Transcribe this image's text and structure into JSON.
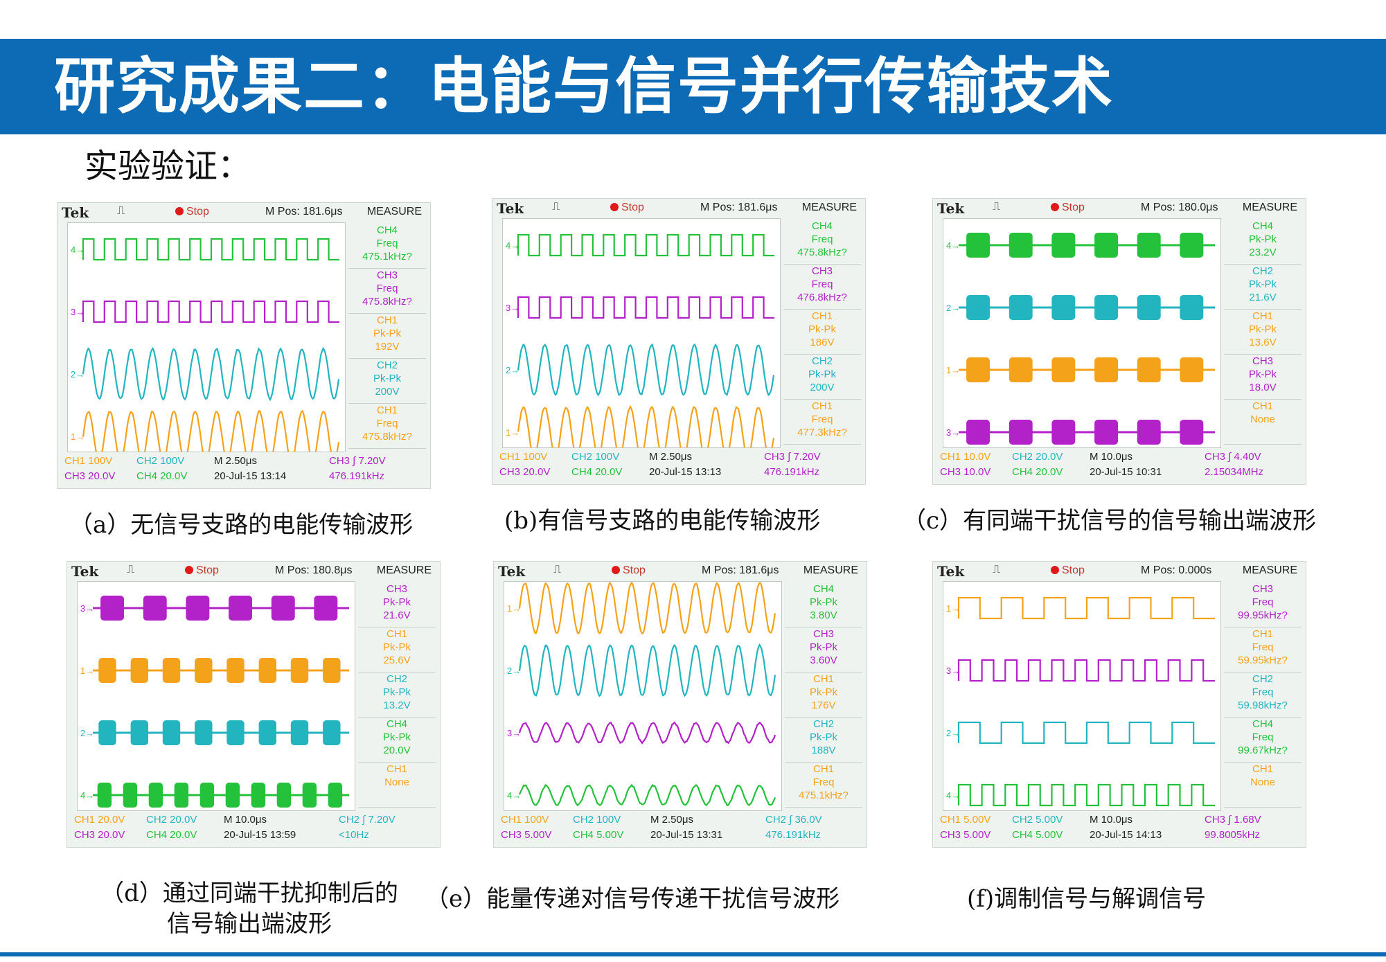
{
  "header": {
    "title": "研究成果二：电能与信号并行传输技术",
    "subtitle": "实验验证：",
    "colors": {
      "title_bar": "#0d6ab4",
      "title_text": "#ffffff"
    }
  },
  "channel_colors": {
    "CH1": "#f5a21b",
    "CH2": "#22b5bf",
    "CH3": "#b222c8",
    "CH4": "#24c23a"
  },
  "common": {
    "brand": "Tek",
    "trigger": "⎍",
    "stop": "Stop",
    "measure": "MEASURE"
  },
  "panels": [
    {
      "caption": "（a）无信号支路的电能传输波形",
      "mpos": "M Pos: 181.6μs",
      "traces": [
        {
          "marker": "4",
          "channel": "CH4",
          "kind": "square",
          "cycles": 12
        },
        {
          "marker": "3",
          "channel": "CH3",
          "kind": "square",
          "cycles": 12
        },
        {
          "marker": "2",
          "channel": "CH2",
          "kind": "sine",
          "cycles": 12
        },
        {
          "marker": "1",
          "channel": "CH1",
          "kind": "sine",
          "cycles": 12
        }
      ],
      "measurements": [
        {
          "ch": "CH4",
          "type": "Freq",
          "value": "475.1kHz?"
        },
        {
          "ch": "CH3",
          "type": "Freq",
          "value": "475.8kHz?"
        },
        {
          "ch": "CH1",
          "type": "Pk-Pk",
          "value": "192V"
        },
        {
          "ch": "CH2",
          "type": "Pk-Pk",
          "value": "200V"
        },
        {
          "ch": "CH1",
          "type": "Freq",
          "value": "475.8kHz?"
        }
      ],
      "footer": {
        "ch1": "CH1  100V",
        "ch2": "CH2  100V",
        "ch3": "CH3  20.0V",
        "ch4": "CH4  20.0V",
        "timebase": "M 2.50μs",
        "datetime": "20-Jul-15 13:14",
        "trigger": "CH3 ∫ 7.20V",
        "freq": "476.191kHz"
      }
    },
    {
      "caption": "(b)有信号支路的电能传输波形",
      "mpos": "M Pos: 181.6μs",
      "traces": [
        {
          "marker": "4",
          "channel": "CH4",
          "kind": "square",
          "cycles": 12
        },
        {
          "marker": "3",
          "channel": "CH3",
          "kind": "square",
          "cycles": 12
        },
        {
          "marker": "2",
          "channel": "CH2",
          "kind": "sine",
          "cycles": 12
        },
        {
          "marker": "1",
          "channel": "CH1",
          "kind": "sine",
          "cycles": 12
        }
      ],
      "measurements": [
        {
          "ch": "CH4",
          "type": "Freq",
          "value": "475.8kHz?"
        },
        {
          "ch": "CH3",
          "type": "Freq",
          "value": "476.8kHz?"
        },
        {
          "ch": "CH1",
          "type": "Pk-Pk",
          "value": "186V"
        },
        {
          "ch": "CH2",
          "type": "Pk-Pk",
          "value": "200V"
        },
        {
          "ch": "CH1",
          "type": "Freq",
          "value": "477.3kHz?"
        }
      ],
      "footer": {
        "ch1": "CH1  100V",
        "ch2": "CH2  100V",
        "ch3": "CH3  20.0V",
        "ch4": "CH4  20.0V",
        "timebase": "M 2.50μs",
        "datetime": "20-Jul-15 13:13",
        "trigger": "CH3 ∫ 7.20V",
        "freq": "476.191kHz"
      }
    },
    {
      "caption": "（c）有同端干扰信号的信号输出端波形",
      "mpos": "M Pos: 180.0μs",
      "traces": [
        {
          "marker": "4",
          "channel": "CH4",
          "kind": "burst",
          "cycles": 6
        },
        {
          "marker": "2",
          "channel": "CH2",
          "kind": "burst",
          "cycles": 6
        },
        {
          "marker": "1",
          "channel": "CH1",
          "kind": "burst",
          "cycles": 6
        },
        {
          "marker": "3",
          "channel": "CH3",
          "kind": "burst",
          "cycles": 6
        }
      ],
      "measurements": [
        {
          "ch": "CH4",
          "type": "Pk-Pk",
          "value": "23.2V"
        },
        {
          "ch": "CH2",
          "type": "Pk-Pk",
          "value": "21.6V"
        },
        {
          "ch": "CH1",
          "type": "Pk-Pk",
          "value": "13.6V"
        },
        {
          "ch": "CH3",
          "type": "Pk-Pk",
          "value": "18.0V"
        },
        {
          "ch": "CH1",
          "type": "",
          "value": "None"
        }
      ],
      "footer": {
        "ch1": "CH1  10.0V",
        "ch2": "CH2  20.0V",
        "ch3": "CH3  10.0V",
        "ch4": "CH4  20.0V",
        "timebase": "M 10.0μs",
        "datetime": "20-Jul-15 10:31",
        "trigger": "CH3 ∫ 4.40V",
        "freq": "2.15034MHz"
      }
    },
    {
      "caption": "（d）通过同端干扰抑制后的信号输出端波形",
      "mpos": "M Pos: 180.8μs",
      "traces": [
        {
          "marker": "3",
          "channel": "CH3",
          "kind": "burst",
          "cycles": 6
        },
        {
          "marker": "1",
          "channel": "CH1",
          "kind": "burst",
          "cycles": 8
        },
        {
          "marker": "2",
          "channel": "CH2",
          "kind": "burst",
          "cycles": 8
        },
        {
          "marker": "4",
          "channel": "CH4",
          "kind": "burst",
          "cycles": 10
        }
      ],
      "measurements": [
        {
          "ch": "CH3",
          "type": "Pk-Pk",
          "value": "21.6V"
        },
        {
          "ch": "CH1",
          "type": "Pk-Pk",
          "value": "25.6V"
        },
        {
          "ch": "CH2",
          "type": "Pk-Pk",
          "value": "13.2V"
        },
        {
          "ch": "CH4",
          "type": "Pk-Pk",
          "value": "20.0V"
        },
        {
          "ch": "CH1",
          "type": "",
          "value": "None"
        }
      ],
      "footer": {
        "ch1": "CH1  20.0V",
        "ch2": "CH2  20.0V",
        "ch3": "CH3  20.0V",
        "ch4": "CH4  20.0V",
        "timebase": "M 10.0μs",
        "datetime": "20-Jul-15 13:59",
        "trigger": "CH2 ∫ 7.20V",
        "freq": "<10Hz"
      }
    },
    {
      "caption": "（e）能量传递对信号传递干扰信号波形",
      "mpos": "M Pos: 181.6μs",
      "traces": [
        {
          "marker": "1",
          "channel": "CH1",
          "kind": "sine",
          "cycles": 12
        },
        {
          "marker": "2",
          "channel": "CH2",
          "kind": "sine",
          "cycles": 12
        },
        {
          "marker": "3",
          "channel": "CH3",
          "kind": "smallsine",
          "cycles": 12
        },
        {
          "marker": "4",
          "channel": "CH4",
          "kind": "smallsine",
          "cycles": 12
        }
      ],
      "measurements": [
        {
          "ch": "CH4",
          "type": "Pk-Pk",
          "value": "3.80V"
        },
        {
          "ch": "CH3",
          "type": "Pk-Pk",
          "value": "3.60V"
        },
        {
          "ch": "CH1",
          "type": "Pk-Pk",
          "value": "176V"
        },
        {
          "ch": "CH2",
          "type": "Pk-Pk",
          "value": "188V"
        },
        {
          "ch": "CH1",
          "type": "Freq",
          "value": "475.1kHz?"
        }
      ],
      "footer": {
        "ch1": "CH1  100V",
        "ch2": "CH2  100V",
        "ch3": "CH3  5.00V",
        "ch4": "CH4  5.00V",
        "timebase": "M 2.50μs",
        "datetime": "20-Jul-15 13:31",
        "trigger": "CH2 ∫ 36.0V",
        "freq": "476.191kHz"
      }
    },
    {
      "caption": "(f)调制信号与解调信号",
      "mpos": "M Pos: 0.000s",
      "traces": [
        {
          "marker": "1",
          "channel": "CH1",
          "kind": "square",
          "cycles": 6
        },
        {
          "marker": "3",
          "channel": "CH3",
          "kind": "square",
          "cycles": 11
        },
        {
          "marker": "2",
          "channel": "CH2",
          "kind": "square",
          "cycles": 6
        },
        {
          "marker": "4",
          "channel": "CH4",
          "kind": "square",
          "cycles": 11
        }
      ],
      "measurements": [
        {
          "ch": "CH3",
          "type": "Freq",
          "value": "99.95kHz?"
        },
        {
          "ch": "CH1",
          "type": "Freq",
          "value": "59.95kHz?"
        },
        {
          "ch": "CH2",
          "type": "Freq",
          "value": "59.98kHz?"
        },
        {
          "ch": "CH4",
          "type": "Freq",
          "value": "99.67kHz?"
        },
        {
          "ch": "CH1",
          "type": "",
          "value": "None"
        }
      ],
      "footer": {
        "ch1": "CH1  5.00V",
        "ch2": "CH2  5.00V",
        "ch3": "CH3  5.00V",
        "ch4": "CH4  5.00V",
        "timebase": "M 10.0μs",
        "datetime": "20-Jul-15 14:13",
        "trigger": "CH3 ∫ 1.68V",
        "freq": "99.8005kHz"
      }
    }
  ]
}
